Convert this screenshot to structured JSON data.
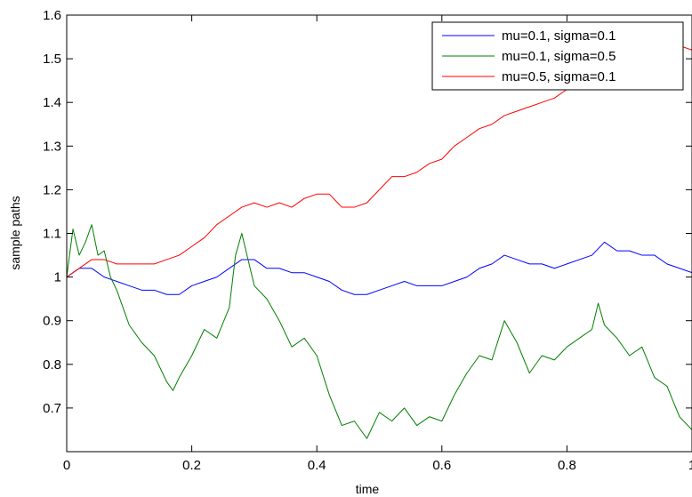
{
  "chart_data": {
    "type": "line",
    "title": "",
    "xlabel": "time",
    "ylabel": "sample paths",
    "xlim": [
      0,
      1
    ],
    "ylim": [
      0.6,
      1.6
    ],
    "x_ticks": [
      0,
      0.2,
      0.4,
      0.6,
      0.8,
      1
    ],
    "x_tick_labels": [
      "0",
      "0.2",
      "0.4",
      "0.6",
      "0.8",
      "1"
    ],
    "y_ticks": [
      0.7,
      0.8,
      0.9,
      1.0,
      1.1,
      1.2,
      1.3,
      1.4,
      1.5,
      1.6
    ],
    "y_tick_labels": [
      "0.7",
      "0.8",
      "0.9",
      "1",
      "1.1",
      "1.2",
      "1.3",
      "1.4",
      "1.5",
      "1.6"
    ],
    "grid": false,
    "legend_position": "top-right",
    "series": [
      {
        "name": "mu=0.1, sigma=0.1",
        "color": "#0000ff",
        "x": [
          0,
          0.02,
          0.04,
          0.06,
          0.08,
          0.1,
          0.12,
          0.14,
          0.16,
          0.18,
          0.2,
          0.22,
          0.24,
          0.26,
          0.28,
          0.3,
          0.32,
          0.34,
          0.36,
          0.38,
          0.4,
          0.42,
          0.44,
          0.46,
          0.48,
          0.5,
          0.52,
          0.54,
          0.56,
          0.58,
          0.6,
          0.62,
          0.64,
          0.66,
          0.68,
          0.7,
          0.72,
          0.74,
          0.76,
          0.78,
          0.8,
          0.82,
          0.84,
          0.86,
          0.88,
          0.9,
          0.92,
          0.94,
          0.96,
          0.98,
          1.0
        ],
        "y": [
          1.0,
          1.02,
          1.02,
          1.0,
          0.99,
          0.98,
          0.97,
          0.97,
          0.96,
          0.96,
          0.98,
          0.99,
          1.0,
          1.02,
          1.04,
          1.04,
          1.02,
          1.02,
          1.01,
          1.01,
          1.0,
          0.99,
          0.97,
          0.96,
          0.96,
          0.97,
          0.98,
          0.99,
          0.98,
          0.98,
          0.98,
          0.99,
          1.0,
          1.02,
          1.03,
          1.05,
          1.04,
          1.03,
          1.03,
          1.02,
          1.03,
          1.04,
          1.05,
          1.08,
          1.06,
          1.06,
          1.05,
          1.05,
          1.03,
          1.02,
          1.01
        ]
      },
      {
        "name": "mu=0.1, sigma=0.5",
        "color": "#007f00",
        "x": [
          0,
          0.01,
          0.02,
          0.03,
          0.04,
          0.05,
          0.06,
          0.07,
          0.08,
          0.09,
          0.1,
          0.12,
          0.14,
          0.16,
          0.17,
          0.18,
          0.2,
          0.22,
          0.24,
          0.26,
          0.27,
          0.28,
          0.3,
          0.32,
          0.34,
          0.36,
          0.38,
          0.4,
          0.42,
          0.44,
          0.46,
          0.48,
          0.5,
          0.52,
          0.54,
          0.56,
          0.58,
          0.6,
          0.62,
          0.64,
          0.66,
          0.68,
          0.7,
          0.72,
          0.74,
          0.76,
          0.78,
          0.8,
          0.82,
          0.84,
          0.85,
          0.86,
          0.88,
          0.9,
          0.92,
          0.94,
          0.96,
          0.98,
          1.0
        ],
        "y": [
          1.0,
          1.11,
          1.05,
          1.08,
          1.12,
          1.05,
          1.06,
          1.0,
          0.97,
          0.93,
          0.89,
          0.85,
          0.82,
          0.76,
          0.74,
          0.77,
          0.82,
          0.88,
          0.86,
          0.93,
          1.05,
          1.1,
          0.98,
          0.95,
          0.9,
          0.84,
          0.86,
          0.82,
          0.73,
          0.66,
          0.67,
          0.63,
          0.69,
          0.67,
          0.7,
          0.66,
          0.68,
          0.67,
          0.73,
          0.78,
          0.82,
          0.81,
          0.9,
          0.85,
          0.78,
          0.82,
          0.81,
          0.84,
          0.86,
          0.88,
          0.94,
          0.89,
          0.86,
          0.82,
          0.84,
          0.77,
          0.75,
          0.68,
          0.65
        ]
      },
      {
        "name": "mu=0.5, sigma=0.1",
        "color": "#ff0000",
        "x": [
          0,
          0.02,
          0.04,
          0.06,
          0.08,
          0.1,
          0.12,
          0.14,
          0.16,
          0.18,
          0.2,
          0.22,
          0.24,
          0.26,
          0.28,
          0.3,
          0.32,
          0.34,
          0.36,
          0.38,
          0.4,
          0.42,
          0.44,
          0.46,
          0.48,
          0.5,
          0.52,
          0.54,
          0.56,
          0.58,
          0.6,
          0.62,
          0.64,
          0.66,
          0.68,
          0.7,
          0.72,
          0.74,
          0.76,
          0.78,
          0.8,
          0.82,
          0.84,
          0.86,
          0.88,
          0.9,
          0.92,
          0.94,
          0.96,
          0.98,
          1.0
        ],
        "y": [
          1.0,
          1.02,
          1.04,
          1.04,
          1.03,
          1.03,
          1.03,
          1.03,
          1.04,
          1.05,
          1.07,
          1.09,
          1.12,
          1.14,
          1.16,
          1.17,
          1.16,
          1.17,
          1.16,
          1.18,
          1.19,
          1.19,
          1.16,
          1.16,
          1.17,
          1.2,
          1.23,
          1.23,
          1.24,
          1.26,
          1.27,
          1.3,
          1.32,
          1.34,
          1.35,
          1.37,
          1.38,
          1.39,
          1.4,
          1.41,
          1.43,
          1.45,
          1.47,
          1.49,
          1.51,
          1.52,
          1.52,
          1.53,
          1.54,
          1.53,
          1.52
        ]
      }
    ]
  }
}
